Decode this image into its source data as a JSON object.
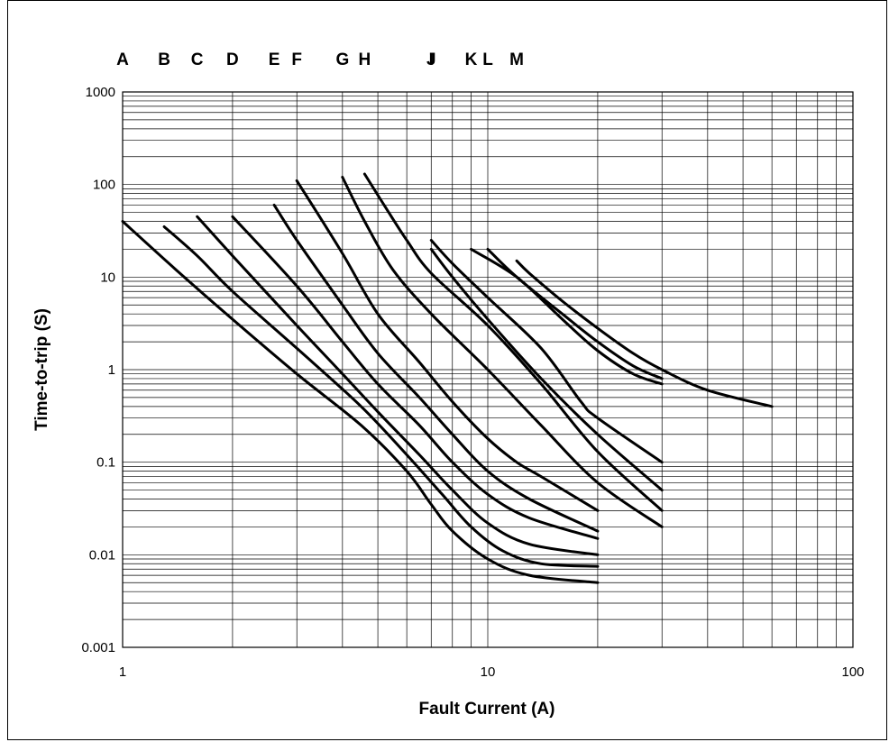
{
  "chart_data": {
    "type": "line",
    "title": "",
    "xlabel": "Fault Current (A)",
    "ylabel": "Time-to-trip (S)",
    "xscale": "log",
    "yscale": "log",
    "xlim": [
      1,
      100
    ],
    "ylim": [
      0.001,
      1000
    ],
    "grid": true,
    "x_tick_labels": [
      "1",
      "10",
      "100"
    ],
    "y_tick_labels": [
      "0.001",
      "0.01",
      "0.1",
      "1",
      "10",
      "100",
      "1000"
    ],
    "legend": "curve letters across top",
    "series": [
      {
        "name": "A",
        "points": [
          [
            1,
            40
          ],
          [
            1.4,
            12
          ],
          [
            2,
            3.5
          ],
          [
            3,
            0.9
          ],
          [
            4.5,
            0.25
          ],
          [
            6,
            0.08
          ],
          [
            7,
            0.035
          ],
          [
            8,
            0.018
          ],
          [
            10,
            0.009
          ],
          [
            13,
            0.006
          ],
          [
            20,
            0.005
          ]
        ]
      },
      {
        "name": "B",
        "points": [
          [
            1.3,
            35
          ],
          [
            1.6,
            17
          ],
          [
            2,
            7
          ],
          [
            3,
            1.7
          ],
          [
            4.5,
            0.4
          ],
          [
            6,
            0.12
          ],
          [
            7.5,
            0.045
          ],
          [
            9,
            0.02
          ],
          [
            11,
            0.011
          ],
          [
            14,
            0.008
          ],
          [
            20,
            0.0075
          ]
        ]
      },
      {
        "name": "C",
        "points": [
          [
            1.6,
            45
          ],
          [
            2,
            17
          ],
          [
            3,
            3
          ],
          [
            4,
            0.9
          ],
          [
            5,
            0.35
          ],
          [
            6.5,
            0.12
          ],
          [
            8,
            0.05
          ],
          [
            10,
            0.022
          ],
          [
            13,
            0.013
          ],
          [
            20,
            0.01
          ]
        ]
      },
      {
        "name": "D",
        "points": [
          [
            2,
            45
          ],
          [
            3,
            8
          ],
          [
            4,
            2
          ],
          [
            5,
            0.7
          ],
          [
            6.5,
            0.25
          ],
          [
            8,
            0.1
          ],
          [
            10,
            0.045
          ],
          [
            13,
            0.025
          ],
          [
            20,
            0.015
          ]
        ]
      },
      {
        "name": "E",
        "points": [
          [
            2.6,
            60
          ],
          [
            3,
            25
          ],
          [
            4,
            5
          ],
          [
            5,
            1.5
          ],
          [
            6.5,
            0.5
          ],
          [
            8,
            0.2
          ],
          [
            10,
            0.08
          ],
          [
            13,
            0.04
          ],
          [
            20,
            0.018
          ]
        ]
      },
      {
        "name": "F",
        "points": [
          [
            3,
            110
          ],
          [
            4,
            18
          ],
          [
            5,
            4
          ],
          [
            6.5,
            1.2
          ],
          [
            8,
            0.45
          ],
          [
            10,
            0.18
          ],
          [
            12,
            0.1
          ],
          [
            14,
            0.07
          ],
          [
            20,
            0.03
          ]
        ]
      },
      {
        "name": "G",
        "points": [
          [
            4,
            120
          ],
          [
            4.6,
            40
          ],
          [
            5.5,
            12
          ],
          [
            7,
            4
          ],
          [
            10,
            1
          ],
          [
            14,
            0.25
          ],
          [
            20,
            0.06
          ],
          [
            30,
            0.02
          ]
        ]
      },
      {
        "name": "H",
        "points": [
          [
            4.6,
            130
          ],
          [
            5.2,
            60
          ],
          [
            6,
            25
          ],
          [
            7,
            11
          ],
          [
            10,
            3
          ],
          [
            14,
            0.7
          ],
          [
            20,
            0.13
          ],
          [
            30,
            0.03
          ]
        ]
      },
      {
        "name": "I",
        "points": [
          [
            7,
            20
          ],
          [
            8,
            10
          ],
          [
            10,
            3.5
          ],
          [
            14,
            0.8
          ],
          [
            20,
            0.2
          ],
          [
            30,
            0.05
          ]
        ]
      },
      {
        "name": "J",
        "points": [
          [
            7,
            25
          ],
          [
            8,
            14
          ],
          [
            10,
            6
          ],
          [
            14,
            1.7
          ],
          [
            18,
            0.45
          ],
          [
            20,
            0.3
          ],
          [
            30,
            0.1
          ]
        ]
      },
      {
        "name": "K",
        "points": [
          [
            9,
            20
          ],
          [
            12,
            10
          ],
          [
            16,
            3.5
          ],
          [
            20,
            1.6
          ],
          [
            25,
            0.9
          ],
          [
            30,
            0.7
          ]
        ]
      },
      {
        "name": "L",
        "points": [
          [
            10,
            20
          ],
          [
            12,
            10
          ],
          [
            16,
            4
          ],
          [
            20,
            2
          ],
          [
            25,
            1.1
          ],
          [
            30,
            0.8
          ]
        ]
      },
      {
        "name": "M",
        "points": [
          [
            12,
            15
          ],
          [
            13,
            11
          ],
          [
            16,
            5.5
          ],
          [
            20,
            2.8
          ],
          [
            25,
            1.5
          ],
          [
            30,
            1
          ],
          [
            40,
            0.6
          ],
          [
            60,
            0.4
          ]
        ]
      }
    ]
  }
}
